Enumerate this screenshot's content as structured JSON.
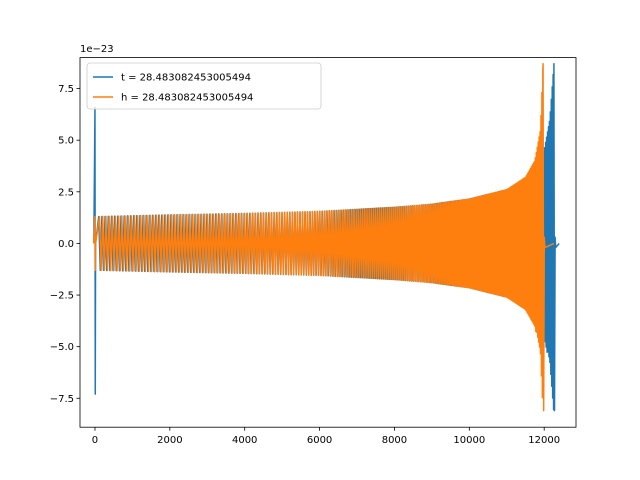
{
  "chart_data": {
    "type": "line",
    "title": "",
    "xlabel": "",
    "ylabel": "",
    "y_offset_label": "1e−23",
    "xlim": [
      -400,
      12850
    ],
    "ylim": [
      -8.9,
      9.0
    ],
    "xticks": [
      0,
      2000,
      4000,
      6000,
      8000,
      10000,
      12000
    ],
    "xtick_labels": [
      "0",
      "2000",
      "4000",
      "6000",
      "8000",
      "10000",
      "12000"
    ],
    "yticks": [
      -7.5,
      -5.0,
      -2.5,
      0.0,
      2.5,
      5.0,
      7.5
    ],
    "ytick_labels": [
      "−7.5",
      "−5.0",
      "−2.5",
      "0.0",
      "2.5",
      "5.0",
      "7.5"
    ],
    "grid": false,
    "legend_position": "top-left",
    "series": [
      {
        "name": "t = 28.483082453005494",
        "color": "#1f77b4",
        "start_spike": {
          "x": 0,
          "max": 6.6,
          "min": -7.3
        },
        "chirp_start_x": 100,
        "merger_x": 12260,
        "ringdown_end_x": 12400,
        "amplitude_points": [
          [
            100,
            1.3
          ],
          [
            2000,
            1.38
          ],
          [
            4000,
            1.45
          ],
          [
            6000,
            1.55
          ],
          [
            8000,
            1.75
          ],
          [
            9000,
            1.9
          ],
          [
            10000,
            2.15
          ],
          [
            11000,
            2.6
          ],
          [
            11500,
            3.1
          ],
          [
            11800,
            3.7
          ],
          [
            12000,
            4.5
          ],
          [
            12150,
            6.0
          ],
          [
            12260,
            8.7
          ]
        ],
        "merger_min": -8.1
      },
      {
        "name": "h = 28.483082453005494",
        "color": "#ff7f0e",
        "start_spike": {
          "x": 0,
          "max": 1.3,
          "min": -1.3
        },
        "chirp_start_x": 100,
        "merger_x": 11970,
        "ringdown_end_x": 12260,
        "amplitude_points": [
          [
            100,
            1.3
          ],
          [
            2000,
            1.38
          ],
          [
            4000,
            1.45
          ],
          [
            6000,
            1.55
          ],
          [
            8000,
            1.75
          ],
          [
            9000,
            1.9
          ],
          [
            10000,
            2.15
          ],
          [
            11000,
            2.6
          ],
          [
            11500,
            3.2
          ],
          [
            11750,
            4.0
          ],
          [
            11900,
            5.5
          ],
          [
            11970,
            8.7
          ]
        ],
        "merger_min": -8.1
      }
    ]
  }
}
